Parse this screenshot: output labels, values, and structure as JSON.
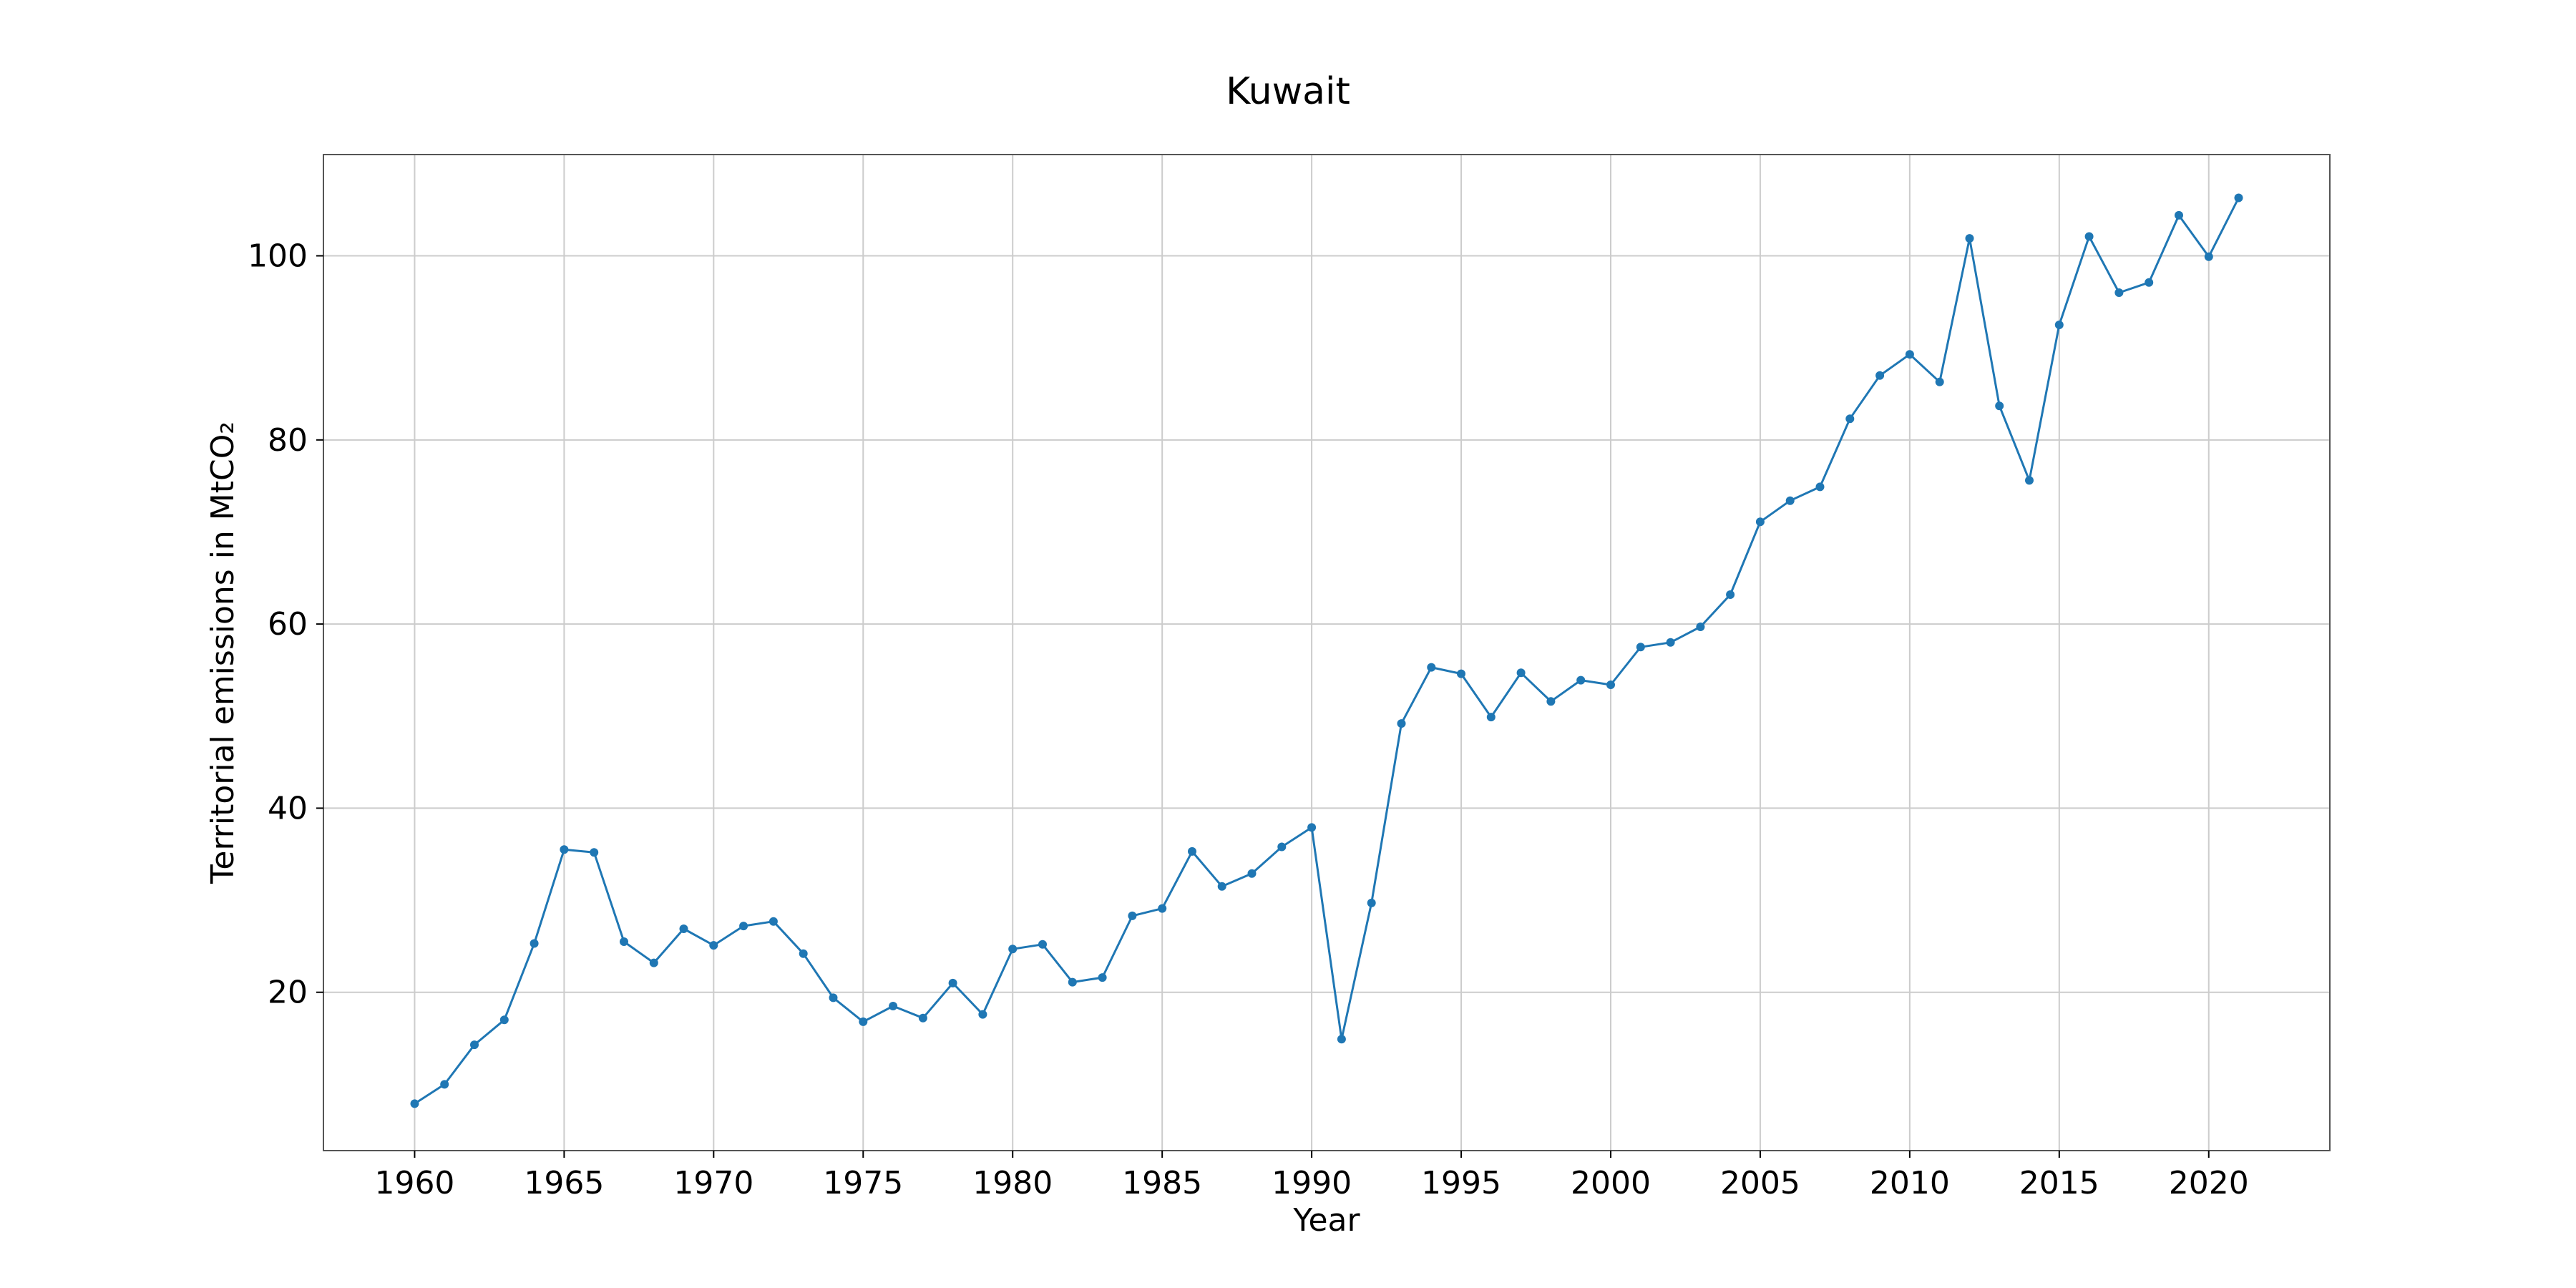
{
  "chart_data": {
    "type": "line",
    "title": "Kuwait",
    "xlabel": "Year",
    "ylabel": "Territorial emissions in MtCO₂",
    "xlim": [
      1956.95,
      2024.05
    ],
    "ylim": [
      2.8,
      111
    ],
    "xticks": [
      1960,
      1965,
      1970,
      1975,
      1980,
      1985,
      1990,
      1995,
      2000,
      2005,
      2010,
      2015,
      2020
    ],
    "yticks": [
      20,
      40,
      60,
      80,
      100
    ],
    "grid": true,
    "legend": "none",
    "series": [
      {
        "color": "#1f77b4",
        "marker": "circle",
        "x": [
          1960,
          1961,
          1962,
          1963,
          1964,
          1965,
          1966,
          1967,
          1968,
          1969,
          1970,
          1971,
          1972,
          1973,
          1974,
          1975,
          1976,
          1977,
          1978,
          1979,
          1980,
          1981,
          1982,
          1983,
          1984,
          1985,
          1986,
          1987,
          1988,
          1989,
          1990,
          1991,
          1992,
          1993,
          1994,
          1995,
          1996,
          1997,
          1998,
          1999,
          2000,
          2001,
          2002,
          2003,
          2004,
          2005,
          2006,
          2007,
          2008,
          2009,
          2010,
          2011,
          2012,
          2013,
          2014,
          2015,
          2016,
          2017,
          2018,
          2019,
          2020,
          2021
        ],
        "values": [
          7.9,
          10.0,
          14.3,
          17.0,
          25.3,
          35.5,
          35.2,
          25.5,
          23.2,
          26.9,
          25.1,
          27.2,
          27.7,
          24.2,
          19.4,
          16.8,
          18.5,
          17.2,
          21.0,
          17.6,
          24.7,
          25.2,
          21.1,
          21.6,
          28.3,
          29.1,
          35.3,
          31.5,
          32.9,
          35.8,
          37.9,
          14.9,
          29.7,
          49.2,
          55.3,
          54.6,
          49.9,
          54.7,
          51.6,
          53.9,
          53.4,
          57.5,
          58.0,
          59.7,
          63.2,
          71.1,
          73.4,
          74.9,
          82.3,
          87.0,
          89.3,
          86.3,
          101.9,
          83.7,
          75.6,
          92.5,
          102.1,
          96.0,
          97.1,
          104.4,
          99.9,
          106.3
        ]
      }
    ]
  }
}
